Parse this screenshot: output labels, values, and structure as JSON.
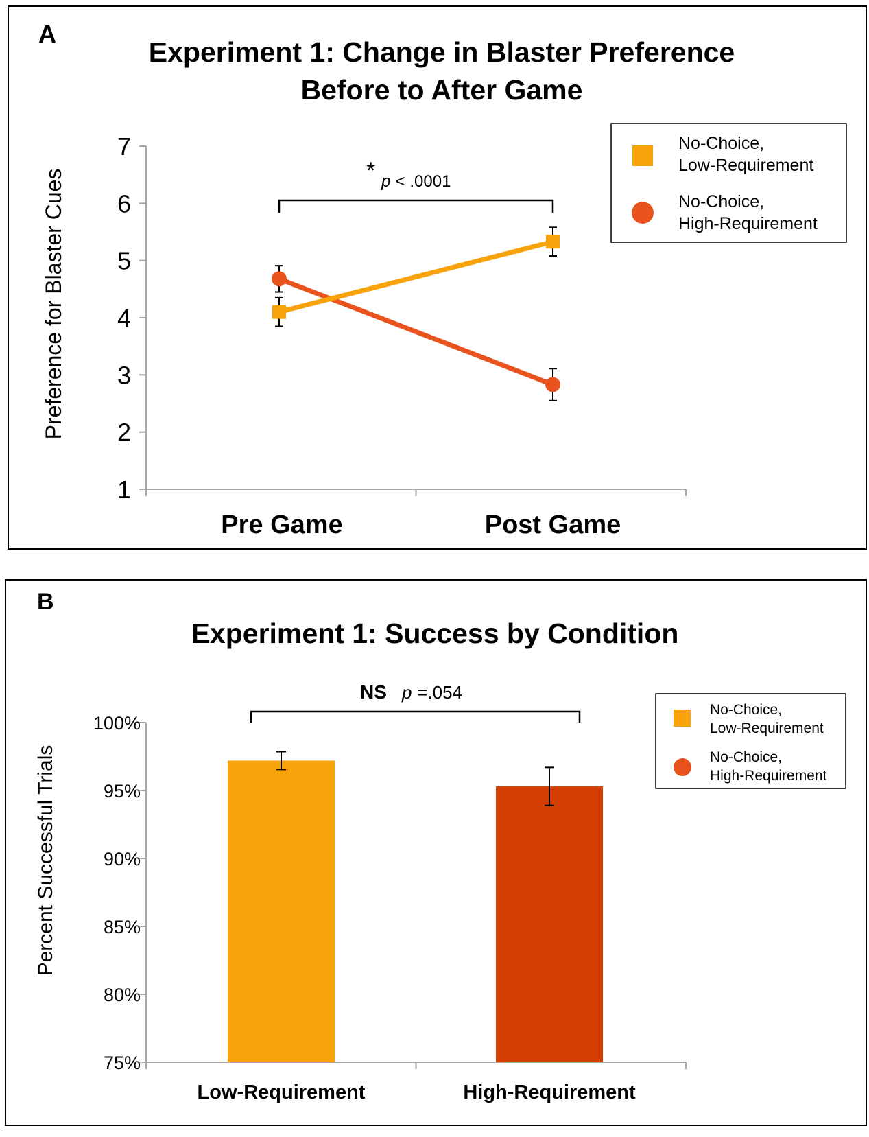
{
  "colors": {
    "low": "#F8A20C",
    "high": "#E8531E",
    "high_bar": "#D33F02",
    "axis": "#a6a6a6",
    "frame": "#000000"
  },
  "chart_data": [
    {
      "panel_label": "A",
      "type": "line",
      "title_lines": [
        "Experiment 1: Change in Blaster Preference",
        "Before to After Game"
      ],
      "categories": [
        "Pre Game",
        "Post Game"
      ],
      "ylabel": "Preference for Blaster Cues",
      "ylim": [
        1,
        7
      ],
      "yticks": [
        "1",
        "2",
        "3",
        "4",
        "5",
        "6",
        "7"
      ],
      "series": [
        {
          "name": "No-Choice, Low-Requirement",
          "legend_lines": [
            "No-Choice,",
            "Low-Requirement"
          ],
          "marker": "square",
          "values": [
            4.1,
            5.33
          ],
          "errors": [
            0.25,
            0.25
          ]
        },
        {
          "name": "No-Choice, High-Requirement",
          "legend_lines": [
            "No-Choice,",
            "High-Requirement"
          ],
          "marker": "circle",
          "values": [
            4.68,
            2.83
          ],
          "errors": [
            0.23,
            0.28
          ]
        }
      ],
      "annotation": {
        "star": "*",
        "p": "p",
        "rest": " < .0001"
      }
    },
    {
      "panel_label": "B",
      "type": "bar",
      "title_lines": [
        "Experiment 1: Success by Condition"
      ],
      "categories": [
        "Low-Requirement",
        "High-Requirement"
      ],
      "ylabel": "Percent Successful Trials",
      "ylim": [
        75,
        100
      ],
      "yticks": [
        "75%",
        "80%",
        "85%",
        "90%",
        "95%",
        "100%"
      ],
      "values": [
        97.2,
        95.3
      ],
      "errors": [
        0.65,
        1.4
      ],
      "legend": [
        {
          "lines": [
            "No-Choice,",
            "Low-Requirement"
          ],
          "marker": "square"
        },
        {
          "lines": [
            "No-Choice,",
            "High-Requirement"
          ],
          "marker": "circle"
        }
      ],
      "annotation": {
        "ns": "NS",
        "p": "p",
        "rest": " =.054"
      }
    }
  ]
}
